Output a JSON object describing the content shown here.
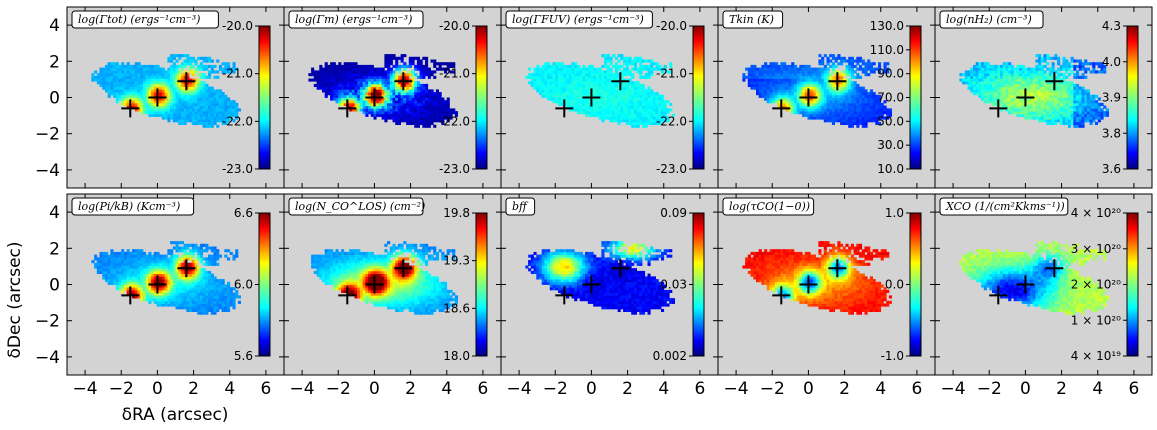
{
  "figure": {
    "xlabel": "δRA (arcsec)",
    "ylabel": "δDec (arcsec)",
    "x_ticks": [
      "−4",
      "−2",
      "0",
      "2",
      "4",
      "6"
    ],
    "y_ticks": [
      "4",
      "2",
      "0",
      "−2",
      "−4"
    ]
  },
  "chart_data": [
    {
      "type": "heatmap",
      "title": "log(Γtot) (ergs⁻¹cm⁻³)",
      "colorbar_ticks": [
        "-20.0",
        "-21.0",
        "-22.0",
        "-23.0"
      ],
      "colorbar_range": [
        -23,
        -20
      ],
      "xlim": [
        -5,
        7
      ],
      "ylim": [
        -5,
        5
      ],
      "markers": [
        [
          -1.5,
          -0.6
        ],
        [
          0.0,
          0.0
        ],
        [
          1.6,
          0.9
        ]
      ],
      "colormap": "jet"
    },
    {
      "type": "heatmap",
      "title": "log(Γm) (ergs⁻¹cm⁻³)",
      "colorbar_ticks": [
        "-20.0",
        "-21.0",
        "-22.0",
        "-23.0"
      ],
      "colorbar_range": [
        -23,
        -20
      ],
      "xlim": [
        -5,
        7
      ],
      "ylim": [
        -5,
        5
      ],
      "markers": [
        [
          -1.5,
          -0.6
        ],
        [
          0.0,
          0.0
        ],
        [
          1.6,
          0.9
        ]
      ],
      "colormap": "jet"
    },
    {
      "type": "heatmap",
      "title": "log(ΓFUV) (ergs⁻¹cm⁻³)",
      "colorbar_ticks": [
        "-20.0",
        "-21.0",
        "-22.0",
        "-23.0"
      ],
      "colorbar_range": [
        -23,
        -20
      ],
      "xlim": [
        -5,
        7
      ],
      "ylim": [
        -5,
        5
      ],
      "markers": [
        [
          -1.5,
          -0.6
        ],
        [
          0.0,
          0.0
        ],
        [
          1.6,
          0.9
        ]
      ],
      "colormap": "jet"
    },
    {
      "type": "heatmap",
      "title": "Tkin (K)",
      "colorbar_ticks": [
        "130.0",
        "110.0",
        "90.0",
        "70.0",
        "50.0",
        "30.0",
        "10.0"
      ],
      "colorbar_range": [
        10,
        130
      ],
      "xlim": [
        -5,
        7
      ],
      "ylim": [
        -5,
        5
      ],
      "markers": [
        [
          -1.5,
          -0.6
        ],
        [
          0.0,
          0.0
        ],
        [
          1.6,
          0.9
        ]
      ],
      "colormap": "jet"
    },
    {
      "type": "heatmap",
      "title": "log(nH₂) (cm⁻³)",
      "colorbar_ticks": [
        "4.3",
        "4.0",
        "3.9",
        "3.8",
        "3.6"
      ],
      "colorbar_range": [
        3.6,
        4.3
      ],
      "xlim": [
        -5,
        7
      ],
      "ylim": [
        -5,
        5
      ],
      "markers": [
        [
          -1.5,
          -0.6
        ],
        [
          0.0,
          0.0
        ],
        [
          1.6,
          0.9
        ]
      ],
      "colormap": "jet"
    },
    {
      "type": "heatmap",
      "title": "log(Pi/kB) (Kcm⁻³)",
      "colorbar_ticks": [
        "6.6",
        "6.0",
        "5.6"
      ],
      "colorbar_range": [
        5.2,
        7.0
      ],
      "xlim": [
        -5,
        7
      ],
      "ylim": [
        -5,
        5
      ],
      "markers": [
        [
          -1.5,
          -0.6
        ],
        [
          0.0,
          0.0
        ],
        [
          1.6,
          0.9
        ]
      ],
      "colormap": "jet"
    },
    {
      "type": "heatmap",
      "title": "log(N_CO^LOS) (cm⁻²)",
      "colorbar_ticks": [
        "19.8",
        "19.3",
        "18.6",
        "18.0"
      ],
      "colorbar_range": [
        18.0,
        19.8
      ],
      "xlim": [
        -5,
        7
      ],
      "ylim": [
        -5,
        5
      ],
      "markers": [
        [
          -1.5,
          -0.6
        ],
        [
          0.0,
          0.0
        ],
        [
          1.6,
          0.9
        ]
      ],
      "colormap": "jet"
    },
    {
      "type": "heatmap",
      "title": "bff",
      "colorbar_ticks": [
        "0.09",
        "0.03",
        "0.002"
      ],
      "colorbar_range": [
        0.002,
        0.09
      ],
      "xlim": [
        -5,
        7
      ],
      "ylim": [
        -5,
        5
      ],
      "markers": [
        [
          -1.5,
          -0.6
        ],
        [
          0.0,
          0.0
        ],
        [
          1.6,
          0.9
        ]
      ],
      "colormap": "jet"
    },
    {
      "type": "heatmap",
      "title": "log(τCO(1−0))",
      "colorbar_ticks": [
        "1.0",
        "0.0",
        "-1.0"
      ],
      "colorbar_range": [
        -1,
        1
      ],
      "xlim": [
        -5,
        7
      ],
      "ylim": [
        -5,
        5
      ],
      "markers": [
        [
          -1.5,
          -0.6
        ],
        [
          0.0,
          0.0
        ],
        [
          1.6,
          0.9
        ]
      ],
      "colormap": "jet"
    },
    {
      "type": "heatmap",
      "title": "XCO (1/(cm²Kkms⁻¹))",
      "colorbar_ticks": [
        "4 × 10²⁰",
        "3 × 10²⁰",
        "2 × 10²⁰",
        "1 × 10²⁰",
        "4 × 10¹⁹"
      ],
      "colorbar_range": [
        4e+19,
        4e+20
      ],
      "xlim": [
        -5,
        7
      ],
      "ylim": [
        -5,
        5
      ],
      "markers": [
        [
          -1.5,
          -0.6
        ],
        [
          0.0,
          0.0
        ],
        [
          1.6,
          0.9
        ]
      ],
      "colormap": "jet"
    }
  ]
}
